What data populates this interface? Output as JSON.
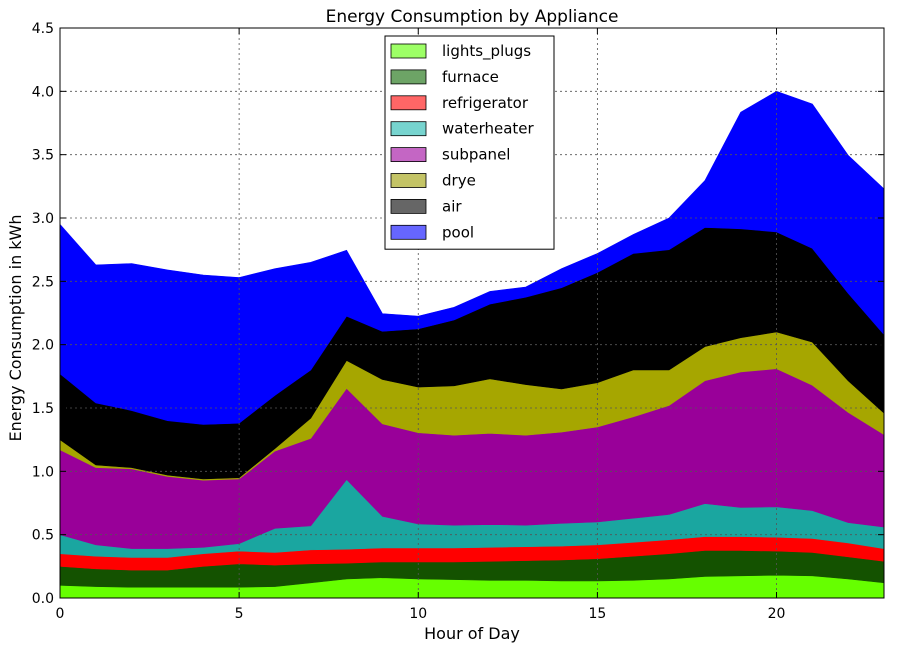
{
  "chart_data": {
    "type": "area",
    "stacked": true,
    "title": "Energy Consumption by Appliance",
    "xlabel": "Hour of Day",
    "ylabel": "Energy Consumption in kWh",
    "xlim": [
      0,
      23
    ],
    "ylim": [
      0,
      4.5
    ],
    "x_ticks": [
      0,
      5,
      10,
      15,
      20
    ],
    "y_ticks": [
      "0.0",
      "0.5",
      "1.0",
      "1.5",
      "2.0",
      "2.5",
      "3.0",
      "3.5",
      "4.0",
      "4.5"
    ],
    "grid": true,
    "legend_position": "upper-center",
    "x": [
      0,
      1,
      2,
      3,
      4,
      5,
      6,
      7,
      8,
      9,
      10,
      11,
      12,
      13,
      14,
      15,
      16,
      17,
      18,
      19,
      20,
      21,
      22,
      23
    ],
    "series": [
      {
        "name": "lights_plugs",
        "color": "#66ff00",
        "legend_color": "#9dff66",
        "values": [
          0.1,
          0.09,
          0.085,
          0.085,
          0.085,
          0.085,
          0.09,
          0.12,
          0.15,
          0.16,
          0.15,
          0.145,
          0.14,
          0.14,
          0.135,
          0.135,
          0.14,
          0.15,
          0.17,
          0.175,
          0.18,
          0.175,
          0.15,
          0.12
        ]
      },
      {
        "name": "furnace",
        "color": "#145200",
        "legend_color": "#6da466",
        "values": [
          0.15,
          0.14,
          0.135,
          0.135,
          0.165,
          0.185,
          0.17,
          0.15,
          0.125,
          0.125,
          0.135,
          0.14,
          0.15,
          0.155,
          0.165,
          0.175,
          0.19,
          0.2,
          0.205,
          0.2,
          0.19,
          0.185,
          0.175,
          0.17
        ]
      },
      {
        "name": "refrigerator",
        "color": "#ff0000",
        "legend_color": "#ff6666",
        "values": [
          0.1,
          0.1,
          0.1,
          0.1,
          0.1,
          0.1,
          0.1,
          0.11,
          0.11,
          0.11,
          0.11,
          0.11,
          0.11,
          0.11,
          0.11,
          0.11,
          0.11,
          0.11,
          0.11,
          0.11,
          0.11,
          0.11,
          0.11,
          0.1
        ]
      },
      {
        "name": "waterheater",
        "color": "#1aa6a0",
        "legend_color": "#77d4cf",
        "values": [
          0.15,
          0.09,
          0.07,
          0.07,
          0.05,
          0.06,
          0.19,
          0.19,
          0.55,
          0.25,
          0.19,
          0.18,
          0.18,
          0.17,
          0.18,
          0.18,
          0.19,
          0.2,
          0.26,
          0.23,
          0.24,
          0.22,
          0.16,
          0.17
        ]
      },
      {
        "name": "subpanel",
        "color": "#990099",
        "legend_color": "#c466c4",
        "values": [
          0.67,
          0.61,
          0.63,
          0.57,
          0.53,
          0.51,
          0.61,
          0.69,
          0.72,
          0.73,
          0.72,
          0.71,
          0.72,
          0.71,
          0.72,
          0.75,
          0.8,
          0.86,
          0.97,
          1.07,
          1.09,
          0.99,
          0.87,
          0.73
        ]
      },
      {
        "name": "drye",
        "color": "#a6a600",
        "legend_color": "#c4c466",
        "values": [
          0.08,
          0.02,
          0.01,
          0.01,
          0.01,
          0.01,
          0.02,
          0.16,
          0.22,
          0.35,
          0.36,
          0.39,
          0.43,
          0.4,
          0.34,
          0.35,
          0.37,
          0.28,
          0.27,
          0.27,
          0.29,
          0.34,
          0.25,
          0.17
        ]
      },
      {
        "name": "air",
        "color": "#000000",
        "legend_color": "#666666",
        "values": [
          0.52,
          0.49,
          0.45,
          0.43,
          0.43,
          0.43,
          0.42,
          0.38,
          0.35,
          0.38,
          0.46,
          0.52,
          0.59,
          0.69,
          0.8,
          0.87,
          0.92,
          0.95,
          0.94,
          0.86,
          0.79,
          0.74,
          0.69,
          0.62
        ]
      },
      {
        "name": "pool",
        "color": "#0000ff",
        "legend_color": "#6666ff",
        "values": [
          1.18,
          1.09,
          1.16,
          1.19,
          1.18,
          1.15,
          1.0,
          0.85,
          0.52,
          0.14,
          0.1,
          0.1,
          0.1,
          0.08,
          0.15,
          0.15,
          0.15,
          0.25,
          0.37,
          0.92,
          1.11,
          1.14,
          1.09,
          1.15
        ]
      }
    ]
  }
}
